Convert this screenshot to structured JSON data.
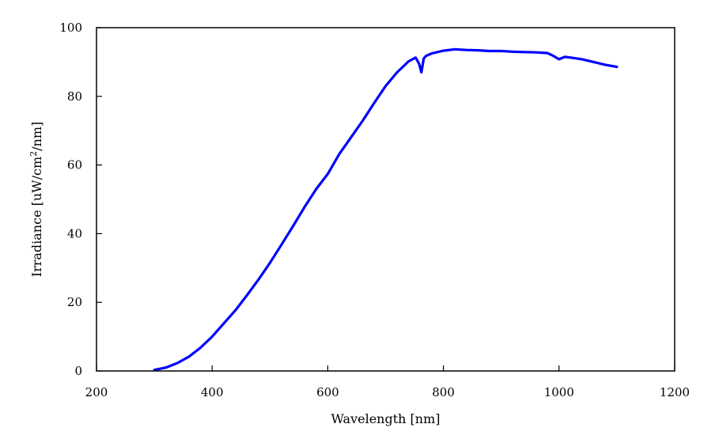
{
  "chart_data": {
    "type": "line",
    "xlabel": "Wavelength [nm]",
    "ylabel_parts": [
      "Irradiance [uW/cm",
      "2",
      "/nm]"
    ],
    "xlim": [
      200,
      1200
    ],
    "ylim": [
      0,
      100
    ],
    "xticks": [
      200,
      400,
      600,
      800,
      1000,
      1200
    ],
    "yticks": [
      0,
      20,
      40,
      60,
      80,
      100
    ],
    "grid": false,
    "legend": "none",
    "series": [
      {
        "color": "#0000ff",
        "x": [
          300,
          320,
          340,
          360,
          380,
          400,
          420,
          440,
          460,
          480,
          500,
          520,
          540,
          560,
          580,
          600,
          620,
          640,
          660,
          680,
          700,
          720,
          740,
          752,
          758,
          762,
          766,
          770,
          780,
          800,
          820,
          840,
          860,
          880,
          900,
          920,
          940,
          960,
          980,
          990,
          1000,
          1010,
          1020,
          1040,
          1060,
          1080,
          1100
        ],
        "y": [
          0.3,
          1.0,
          2.3,
          4.2,
          6.8,
          10.0,
          13.8,
          17.6,
          22.0,
          26.6,
          31.5,
          36.8,
          42.2,
          47.8,
          53.0,
          57.4,
          63.2,
          68.0,
          72.8,
          78.0,
          83.0,
          87.0,
          90.2,
          91.3,
          89.5,
          87.0,
          91.0,
          91.8,
          92.5,
          93.3,
          93.7,
          93.5,
          93.4,
          93.2,
          93.2,
          93.0,
          92.9,
          92.8,
          92.6,
          91.8,
          90.8,
          91.5,
          91.3,
          90.8,
          90.0,
          89.2,
          88.6
        ]
      }
    ]
  }
}
